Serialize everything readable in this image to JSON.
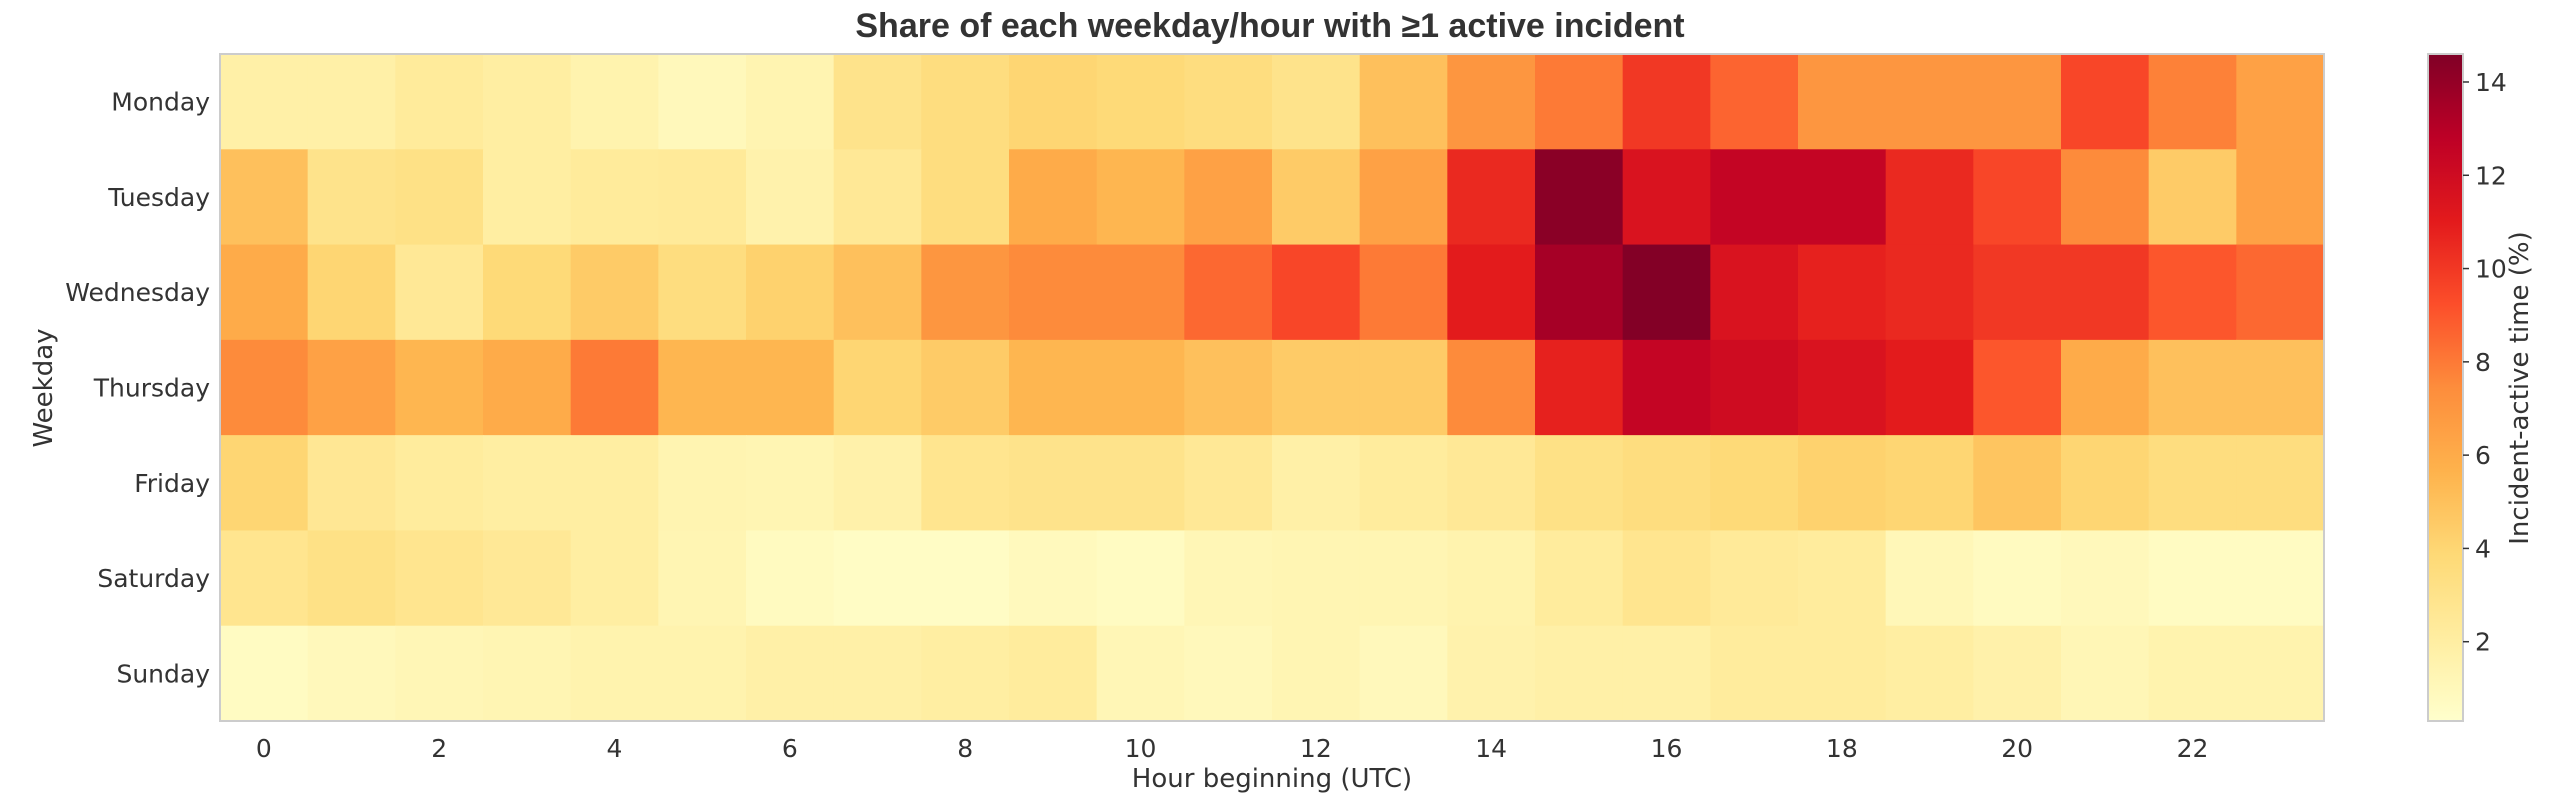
{
  "chart_data": {
    "type": "heatmap",
    "title": "Share of each weekday/hour with ≥1 active incident",
    "xlabel": "Hour beginning (UTC)",
    "ylabel": "Weekday",
    "rows": [
      "Monday",
      "Tuesday",
      "Wednesday",
      "Thursday",
      "Friday",
      "Saturday",
      "Sunday"
    ],
    "columns": [
      0,
      1,
      2,
      3,
      4,
      5,
      6,
      7,
      8,
      9,
      10,
      11,
      12,
      13,
      14,
      15,
      16,
      17,
      18,
      19,
      20,
      21,
      22,
      23
    ],
    "x_tick_labels": [
      "0",
      "2",
      "4",
      "6",
      "8",
      "10",
      "12",
      "14",
      "16",
      "18",
      "20",
      "22"
    ],
    "values": [
      [
        1.8,
        1.8,
        2.3,
        2.0,
        1.5,
        1.0,
        1.4,
        3.0,
        3.5,
        4.0,
        3.8,
        3.5,
        3.0,
        5.0,
        7.0,
        8.0,
        10.0,
        8.6,
        7.0,
        7.0,
        7.0,
        9.5,
        7.8,
        6.5
      ],
      [
        5.0,
        3.0,
        3.2,
        2.0,
        2.3,
        2.4,
        1.6,
        2.5,
        3.5,
        6.0,
        5.5,
        6.5,
        4.5,
        6.5,
        10.5,
        14.3,
        11.5,
        12.5,
        12.5,
        10.5,
        9.5,
        7.5,
        4.5,
        6.5
      ],
      [
        6.0,
        4.0,
        2.5,
        3.8,
        4.5,
        3.5,
        4.2,
        5.0,
        7.0,
        7.5,
        7.5,
        8.5,
        9.5,
        8.0,
        11.0,
        13.5,
        14.5,
        11.5,
        10.8,
        10.5,
        10.0,
        10.0,
        9.0,
        8.5
      ],
      [
        7.5,
        6.5,
        5.5,
        6.0,
        8.0,
        5.5,
        5.5,
        4.0,
        4.5,
        5.5,
        5.5,
        5.0,
        4.5,
        4.5,
        7.5,
        10.8,
        12.5,
        12.0,
        11.5,
        11.0,
        9.0,
        6.0,
        5.0,
        5.0
      ],
      [
        4.0,
        2.6,
        2.2,
        2.0,
        2.0,
        1.4,
        1.3,
        1.7,
        2.8,
        3.0,
        3.0,
        2.5,
        1.8,
        2.2,
        2.5,
        3.2,
        3.5,
        3.8,
        4.2,
        4.0,
        4.8,
        4.0,
        3.5,
        3.5
      ],
      [
        2.8,
        3.2,
        2.8,
        2.5,
        2.0,
        1.3,
        0.8,
        0.6,
        0.6,
        0.9,
        0.7,
        1.2,
        1.3,
        1.3,
        1.5,
        2.2,
        2.8,
        2.4,
        2.2,
        1.1,
        0.8,
        1.0,
        0.7,
        0.7
      ],
      [
        0.7,
        1.0,
        1.2,
        1.3,
        1.5,
        1.5,
        1.8,
        1.8,
        2.0,
        2.2,
        1.2,
        1.0,
        1.3,
        1.0,
        1.6,
        1.8,
        1.8,
        2.2,
        2.2,
        2.0,
        1.7,
        1.2,
        1.5,
        1.5
      ]
    ],
    "colorbar": {
      "label": "Incident-active time (%)",
      "min": 0.3,
      "max": 14.6,
      "ticks": [
        2,
        4,
        6,
        8,
        10,
        12,
        14
      ],
      "colormap": "YlOrRd"
    },
    "grid": false
  },
  "colors": {
    "text": "#333333",
    "axis_frame": "#cccccc"
  }
}
